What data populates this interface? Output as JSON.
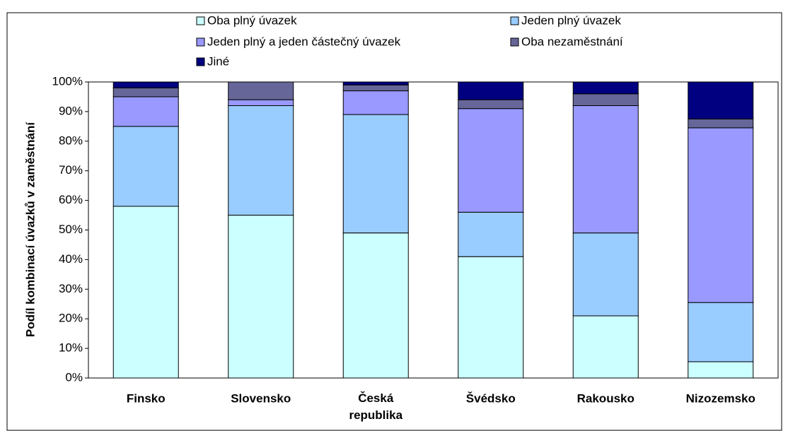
{
  "chart_data": {
    "type": "stacked_bar",
    "y_label": "Podíl kombinací úvazků v zaměstnání",
    "categories": [
      "Finsko",
      "Slovensko",
      "Česká republika",
      "Švédsko",
      "Rakousko",
      "Nizozemsko"
    ],
    "series": [
      {
        "name": "Oba plný úvazek",
        "color": "#ccffff",
        "values": [
          58,
          55,
          49,
          41,
          21,
          5.5
        ]
      },
      {
        "name": "Jeden plný úvazek",
        "color": "#99ccff",
        "values": [
          27,
          37,
          40,
          15,
          28,
          20
        ]
      },
      {
        "name": "Jeden plný a jeden částečný úvazek",
        "color": "#9999ff",
        "values": [
          10,
          2,
          8,
          35,
          43,
          59
        ]
      },
      {
        "name": "Oba nezaměstnání",
        "color": "#666699",
        "values": [
          3,
          6,
          2,
          3,
          4,
          3
        ]
      },
      {
        "name": "Jiné",
        "color": "#000080",
        "values": [
          2,
          0,
          1,
          6,
          4,
          12.5
        ]
      }
    ],
    "ylim": [
      0,
      100
    ],
    "yticks": [
      {
        "value": 0,
        "label": "0%"
      },
      {
        "value": 10,
        "label": "10%"
      },
      {
        "value": 20,
        "label": "20%"
      },
      {
        "value": 30,
        "label": "30%"
      },
      {
        "value": 40,
        "label": "40%"
      },
      {
        "value": 50,
        "label": "50%"
      },
      {
        "value": 60,
        "label": "60%"
      },
      {
        "value": 70,
        "label": "70%"
      },
      {
        "value": 80,
        "label": "80%"
      },
      {
        "value": 90,
        "label": "90%"
      },
      {
        "value": 100,
        "label": "100%"
      }
    ]
  }
}
